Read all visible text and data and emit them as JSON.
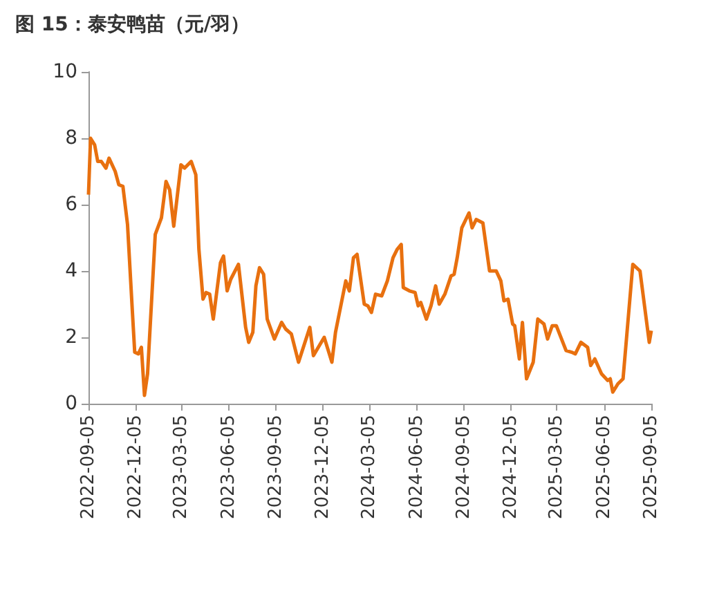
{
  "chart_data": {
    "type": "line",
    "title": "图 15：泰安鸭苗（元/羽）",
    "x": [
      "2022-09-05",
      "2022-09-09",
      "2022-09-17",
      "2022-09-23",
      "2022-09-30",
      "2022-10-09",
      "2022-10-15",
      "2022-10-27",
      "2022-11-03",
      "2022-11-11",
      "2022-11-20",
      "2022-11-29",
      "2022-12-04",
      "2022-12-11",
      "2022-12-17",
      "2022-12-23",
      "2022-12-29",
      "2023-01-13",
      "2023-01-25",
      "2023-02-03",
      "2023-02-10",
      "2023-02-18",
      "2023-03-04",
      "2023-03-11",
      "2023-03-24",
      "2023-04-02",
      "2023-04-08",
      "2023-04-16",
      "2023-04-22",
      "2023-04-29",
      "2023-05-06",
      "2023-05-20",
      "2023-05-26",
      "2023-06-02",
      "2023-06-09",
      "2023-06-24",
      "2023-07-08",
      "2023-07-14",
      "2023-07-22",
      "2023-07-28",
      "2023-08-04",
      "2023-08-12",
      "2023-08-19",
      "2023-09-02",
      "2023-09-16",
      "2023-09-24",
      "2023-10-05",
      "2023-10-19",
      "2023-11-10",
      "2023-11-17",
      "2023-12-08",
      "2023-12-23",
      "2023-12-30",
      "2024-01-19",
      "2024-01-26",
      "2024-02-03",
      "2024-02-10",
      "2024-02-24",
      "2024-03-02",
      "2024-03-09",
      "2024-03-17",
      "2024-03-29",
      "2024-04-09",
      "2024-04-20",
      "2024-04-28",
      "2024-05-06",
      "2024-05-10",
      "2024-05-22",
      "2024-06-02",
      "2024-06-08",
      "2024-06-13",
      "2024-06-24",
      "2024-07-03",
      "2024-07-12",
      "2024-07-19",
      "2024-07-30",
      "2024-08-11",
      "2024-08-17",
      "2024-08-23",
      "2024-09-01",
      "2024-09-15",
      "2024-09-21",
      "2024-09-29",
      "2024-10-12",
      "2024-10-25",
      "2024-11-07",
      "2024-11-16",
      "2024-11-22",
      "2024-11-30",
      "2024-12-09",
      "2024-12-13",
      "2024-12-22",
      "2024-12-28",
      "2025-01-05",
      "2025-01-18",
      "2025-01-27",
      "2025-02-08",
      "2025-02-15",
      "2025-02-24",
      "2025-03-04",
      "2025-03-23",
      "2025-04-03",
      "2025-04-10",
      "2025-04-21",
      "2025-05-04",
      "2025-05-10",
      "2025-05-18",
      "2025-05-31",
      "2025-06-12",
      "2025-06-17",
      "2025-06-22",
      "2025-07-02",
      "2025-07-12",
      "2025-07-31",
      "2025-08-14",
      "2025-09-01",
      "2025-09-05"
    ],
    "series": [
      {
        "color": "#e8700f",
        "values": [
          6.3,
          8.0,
          7.8,
          7.3,
          7.3,
          7.1,
          7.4,
          7.0,
          6.6,
          6.55,
          5.4,
          2.9,
          1.55,
          1.5,
          1.7,
          0.25,
          0.9,
          5.1,
          5.6,
          6.7,
          6.45,
          5.35,
          7.2,
          7.1,
          7.3,
          6.9,
          4.65,
          3.15,
          3.35,
          3.3,
          2.55,
          4.25,
          4.45,
          3.4,
          3.75,
          4.2,
          2.3,
          1.85,
          2.15,
          3.55,
          4.1,
          3.9,
          2.55,
          1.95,
          2.45,
          2.25,
          2.1,
          1.25,
          2.3,
          1.45,
          2.0,
          1.25,
          2.15,
          3.7,
          3.4,
          4.4,
          4.5,
          3.0,
          2.95,
          2.75,
          3.3,
          3.25,
          3.7,
          4.4,
          4.65,
          4.8,
          3.5,
          3.4,
          3.35,
          2.95,
          3.05,
          2.55,
          2.95,
          3.55,
          3.0,
          3.3,
          3.85,
          3.9,
          4.4,
          5.3,
          5.75,
          5.3,
          5.55,
          5.45,
          4.0,
          4.0,
          3.7,
          3.1,
          3.15,
          2.4,
          2.35,
          1.35,
          2.45,
          0.75,
          1.25,
          2.55,
          2.4,
          1.95,
          2.35,
          2.35,
          1.6,
          1.55,
          1.5,
          1.85,
          1.7,
          1.15,
          1.35,
          0.9,
          0.7,
          0.75,
          0.35,
          0.6,
          0.75,
          4.2,
          4.0,
          1.85,
          2.2
        ]
      }
    ],
    "xlim": [
      "2022-09-05",
      "2025-09-05"
    ],
    "xticks": [
      "2022-09-05",
      "2022-12-05",
      "2023-03-05",
      "2023-06-05",
      "2023-09-05",
      "2023-12-05",
      "2024-03-05",
      "2024-06-05",
      "2024-09-05",
      "2024-12-05",
      "2025-03-05",
      "2025-06-05",
      "2025-09-05"
    ],
    "ylim": [
      0,
      10
    ],
    "yticks": [
      0,
      2,
      4,
      6,
      8,
      10
    ],
    "grid": false,
    "marker": "none",
    "line_style": "solid"
  }
}
